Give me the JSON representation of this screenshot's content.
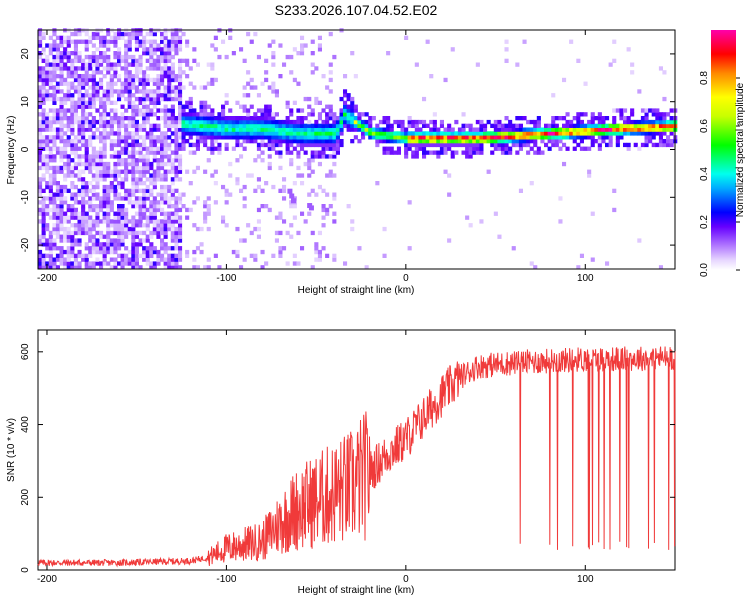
{
  "title": "S233.2026.107.04.52.E02",
  "chart_data": [
    {
      "type": "heatmap",
      "xlabel": "Height of straight line (km)",
      "ylabel": "Frequency (Hz)",
      "xlim": [
        -205,
        150
      ],
      "ylim": [
        -25,
        25
      ],
      "xticks": [
        -200,
        -100,
        0,
        100
      ],
      "yticks": [
        -20,
        -10,
        0,
        10,
        20
      ],
      "colorbar": {
        "label": "Normalized spectral amplitude",
        "ticks": [
          "0.0",
          "0.2",
          "0.4",
          "0.6",
          "0.8"
        ],
        "range": [
          0,
          1
        ],
        "colors": [
          "#ffffff",
          "#cc99ff",
          "#6600ff",
          "#0000ff",
          "#00ffff",
          "#00ff00",
          "#ffff00",
          "#ff9900",
          "#ff0000",
          "#ff00aa"
        ]
      },
      "ridge": {
        "description_points_km": [
          -125,
          -100,
          -80,
          -60,
          -40,
          -35,
          -20,
          0,
          20,
          40,
          60,
          80,
          100,
          120,
          150
        ],
        "frequency_hz": [
          5,
          4,
          4,
          3,
          3,
          7,
          3,
          2,
          2,
          2,
          2.5,
          3,
          3.5,
          4,
          4.5
        ]
      }
    },
    {
      "type": "line",
      "xlabel": "Height of straight line (km)",
      "ylabel": "SNR (10 * v/v)",
      "xlim": [
        -205,
        150
      ],
      "ylim": [
        0,
        660
      ],
      "xticks": [
        -200,
        -100,
        0,
        100
      ],
      "yticks": [
        0,
        200,
        400,
        600
      ],
      "series": [
        {
          "name": "SNR",
          "color": "#f03a3a",
          "x": [
            -205,
            -160,
            -120,
            -110,
            -100,
            -80,
            -70,
            -60,
            -50,
            -40,
            -30,
            -20,
            -10,
            0,
            10,
            20,
            30,
            40,
            60,
            80,
            100,
            120,
            150
          ],
          "y": [
            20,
            20,
            25,
            35,
            60,
            80,
            130,
            170,
            190,
            210,
            230,
            270,
            320,
            360,
            420,
            480,
            530,
            560,
            570,
            575,
            580,
            580,
            585
          ]
        }
      ]
    }
  ]
}
